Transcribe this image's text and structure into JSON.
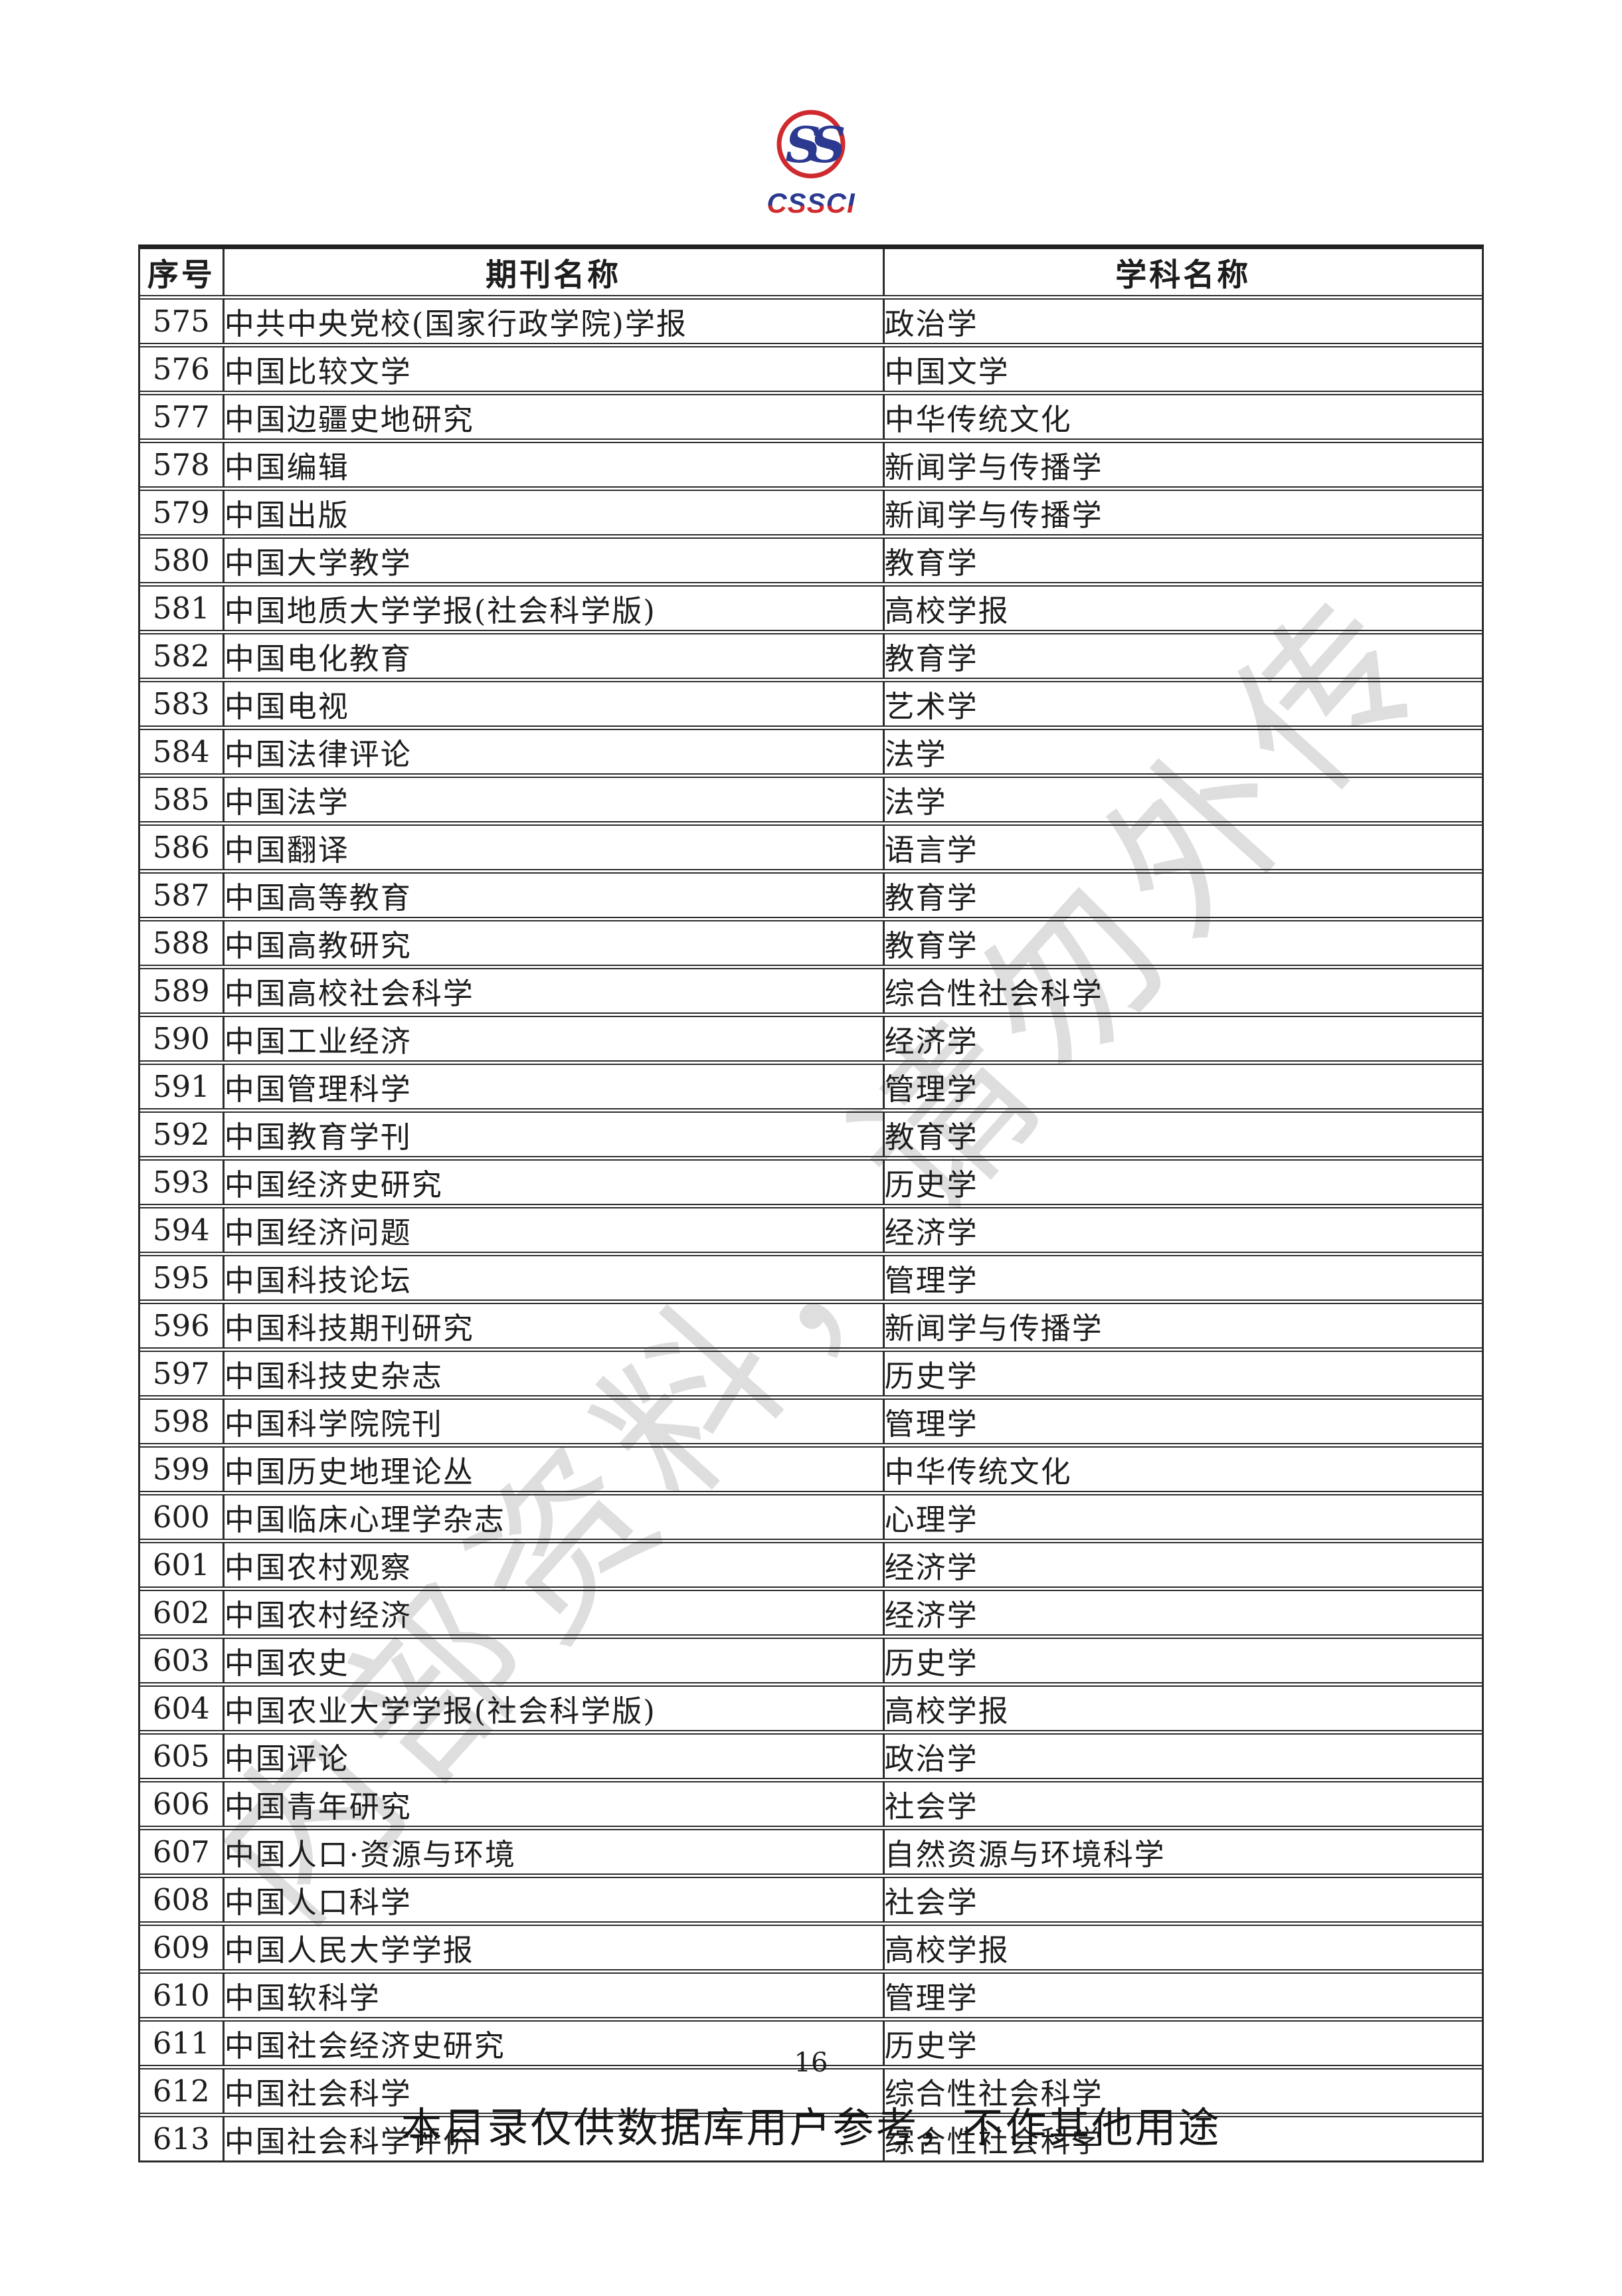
{
  "logo": {
    "ss": "SS",
    "cssci": "CSSCI"
  },
  "colors": {
    "logo_red": "#cf2a2e",
    "logo_blue": "#2b3990",
    "watermark_gray": "#d4d4d4",
    "text": "#1d1d1d"
  },
  "watermark": {
    "text": "内部资料，请勿外传"
  },
  "table": {
    "headers": [
      "序号",
      "期刊名称",
      "学科名称"
    ],
    "rows": [
      [
        "575",
        "中共中央党校(国家行政学院)学报",
        "政治学"
      ],
      [
        "576",
        "中国比较文学",
        "中国文学"
      ],
      [
        "577",
        "中国边疆史地研究",
        "中华传统文化"
      ],
      [
        "578",
        "中国编辑",
        "新闻学与传播学"
      ],
      [
        "579",
        "中国出版",
        "新闻学与传播学"
      ],
      [
        "580",
        "中国大学教学",
        "教育学"
      ],
      [
        "581",
        "中国地质大学学报(社会科学版)",
        "高校学报"
      ],
      [
        "582",
        "中国电化教育",
        "教育学"
      ],
      [
        "583",
        "中国电视",
        "艺术学"
      ],
      [
        "584",
        "中国法律评论",
        "法学"
      ],
      [
        "585",
        "中国法学",
        "法学"
      ],
      [
        "586",
        "中国翻译",
        "语言学"
      ],
      [
        "587",
        "中国高等教育",
        "教育学"
      ],
      [
        "588",
        "中国高教研究",
        "教育学"
      ],
      [
        "589",
        "中国高校社会科学",
        "综合性社会科学"
      ],
      [
        "590",
        "中国工业经济",
        "经济学"
      ],
      [
        "591",
        "中国管理科学",
        "管理学"
      ],
      [
        "592",
        "中国教育学刊",
        "教育学"
      ],
      [
        "593",
        "中国经济史研究",
        "历史学"
      ],
      [
        "594",
        "中国经济问题",
        "经济学"
      ],
      [
        "595",
        "中国科技论坛",
        "管理学"
      ],
      [
        "596",
        "中国科技期刊研究",
        "新闻学与传播学"
      ],
      [
        "597",
        "中国科技史杂志",
        "历史学"
      ],
      [
        "598",
        "中国科学院院刊",
        "管理学"
      ],
      [
        "599",
        "中国历史地理论丛",
        "中华传统文化"
      ],
      [
        "600",
        "中国临床心理学杂志",
        "心理学"
      ],
      [
        "601",
        "中国农村观察",
        "经济学"
      ],
      [
        "602",
        "中国农村经济",
        "经济学"
      ],
      [
        "603",
        "中国农史",
        "历史学"
      ],
      [
        "604",
        "中国农业大学学报(社会科学版)",
        "高校学报"
      ],
      [
        "605",
        "中国评论",
        "政治学"
      ],
      [
        "606",
        "中国青年研究",
        "社会学"
      ],
      [
        "607",
        "中国人口·资源与环境",
        "自然资源与环境科学"
      ],
      [
        "608",
        "中国人口科学",
        "社会学"
      ],
      [
        "609",
        "中国人民大学学报",
        "高校学报"
      ],
      [
        "610",
        "中国软科学",
        "管理学"
      ],
      [
        "611",
        "中国社会经济史研究",
        "历史学"
      ],
      [
        "612",
        "中国社会科学",
        "综合性社会科学"
      ],
      [
        "613",
        "中国社会科学评价",
        "综合性社会科学"
      ]
    ]
  },
  "footer": {
    "page_number": "16",
    "note": "本目录仅供数据库用户参考，不作其他用途"
  }
}
